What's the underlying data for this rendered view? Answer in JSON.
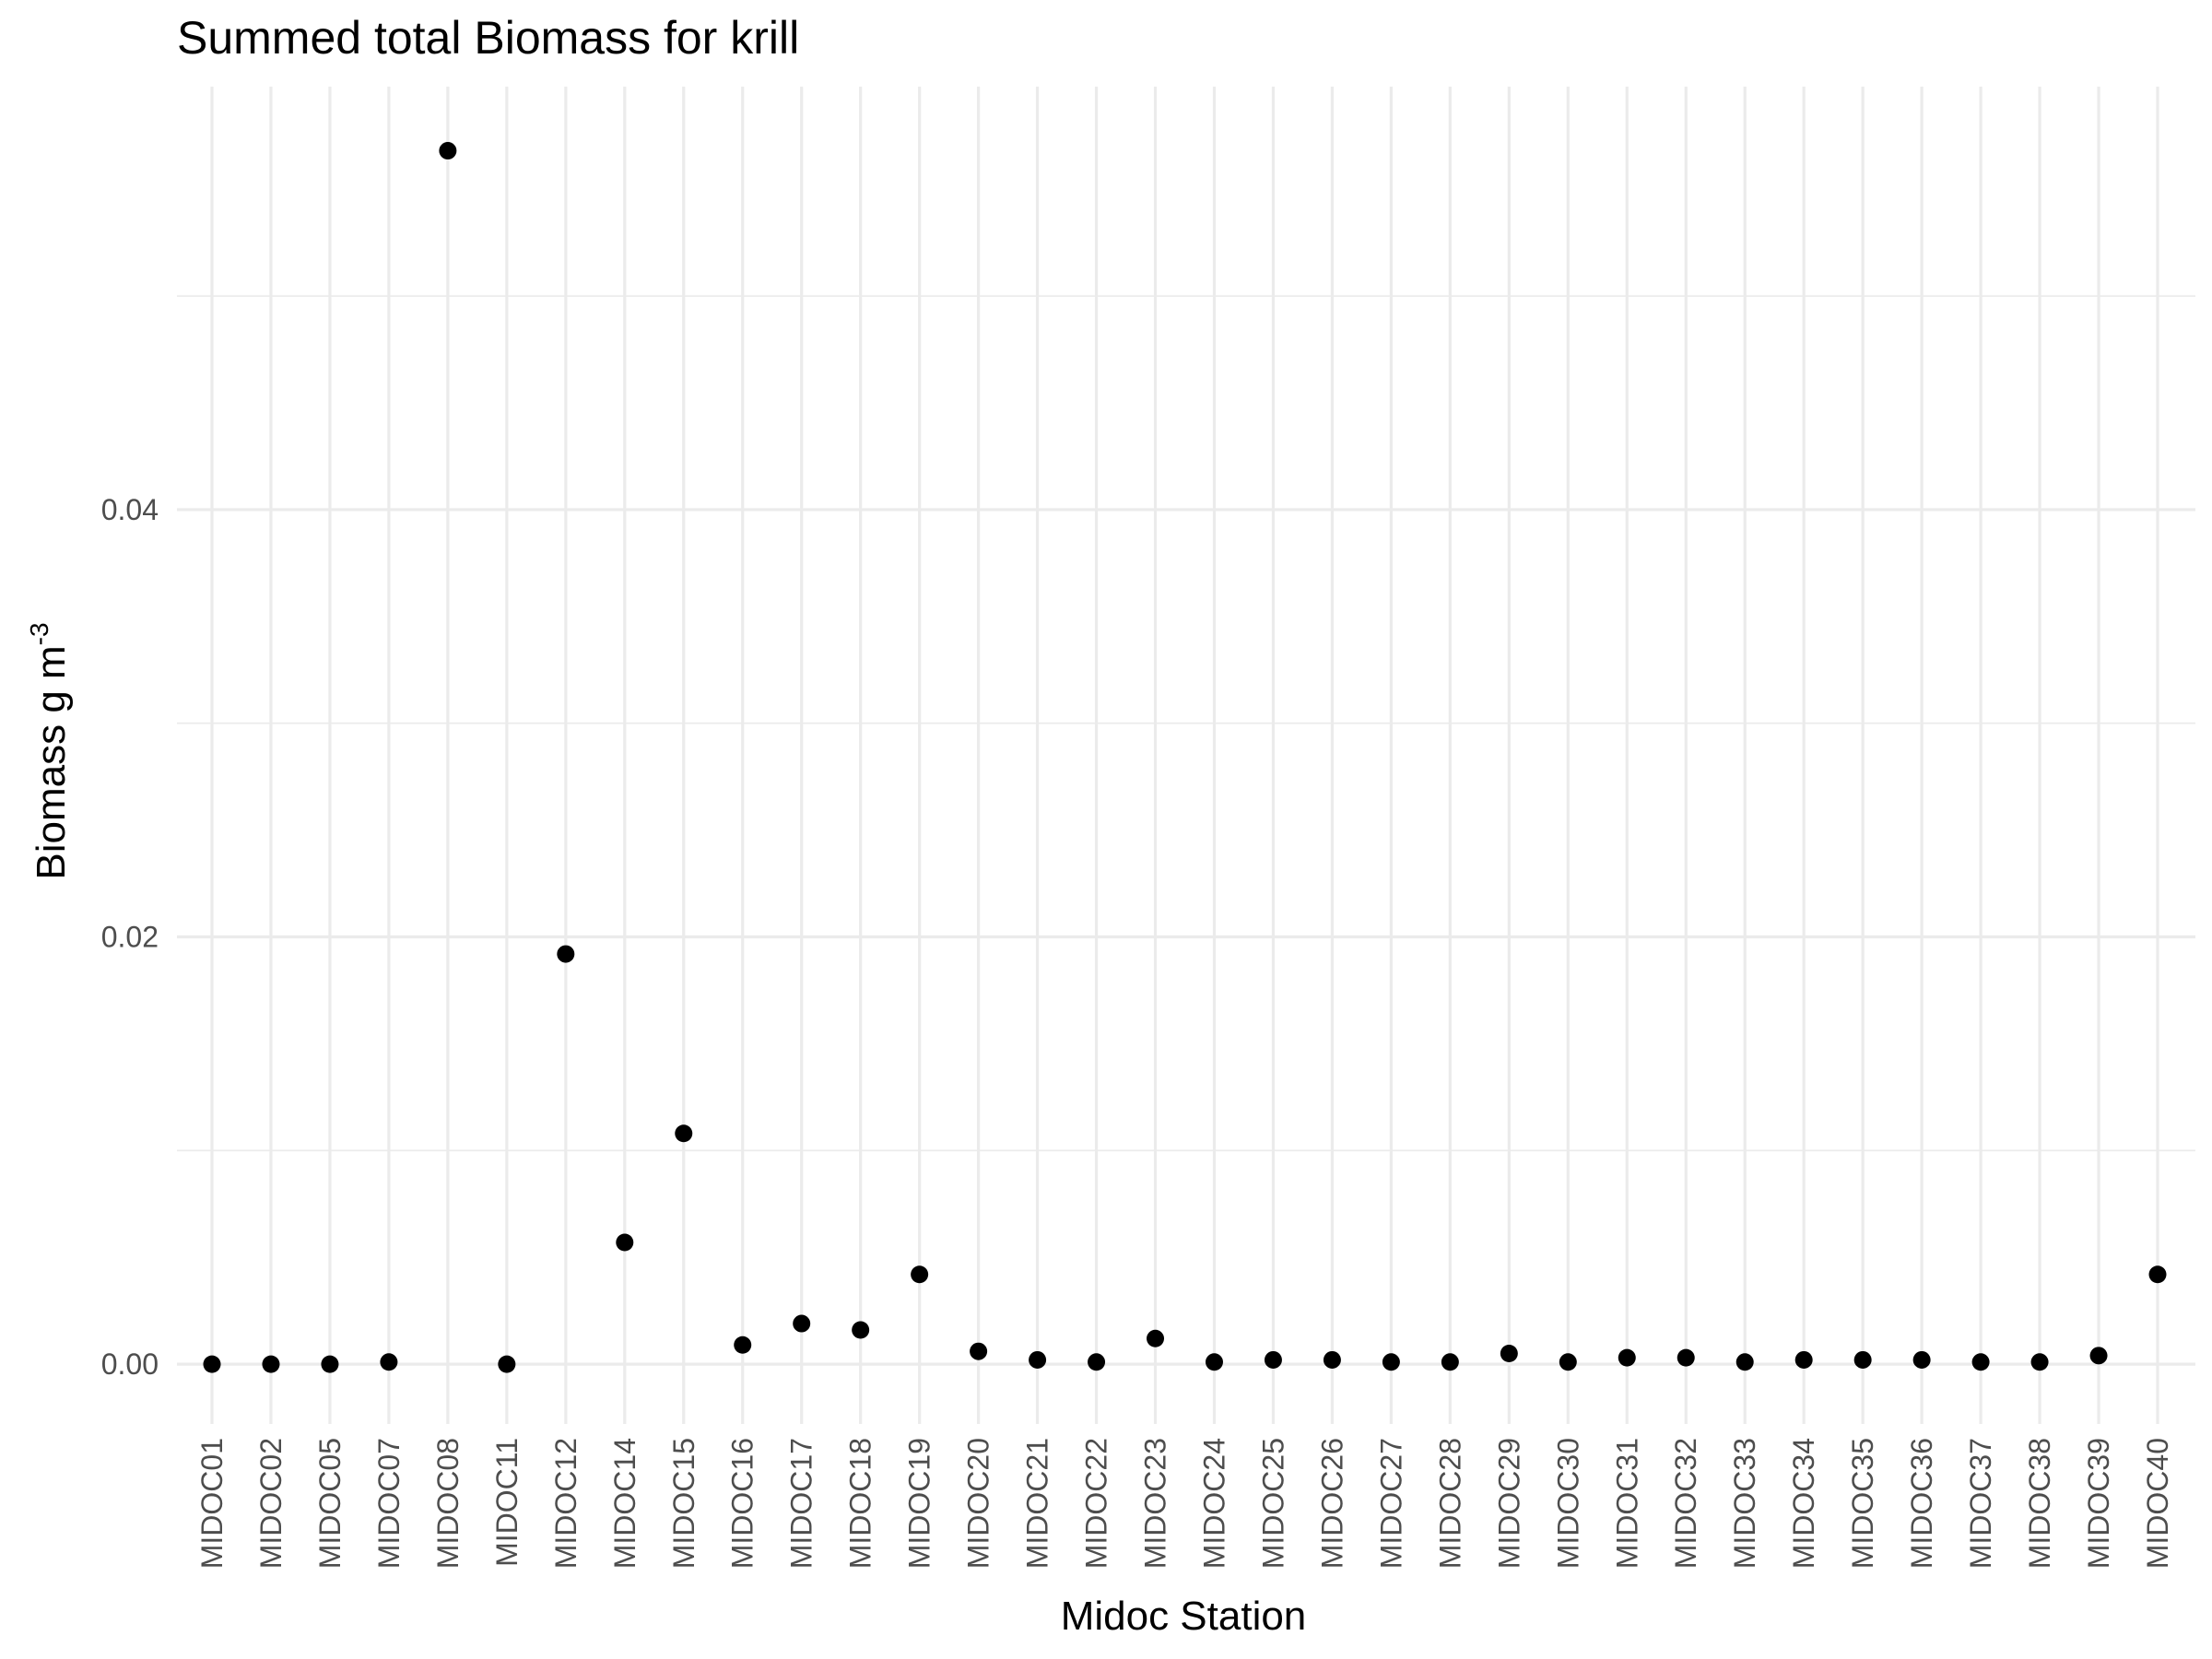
{
  "chart_data": {
    "type": "scatter",
    "title": "Summed total Biomass for krill",
    "xlabel": "Midoc Station",
    "ylabel": "Biomass g m",
    "ylabel_superscript": "-3",
    "categories": [
      "MIDOC01",
      "MIDOC02",
      "MIDOC05",
      "MIDOC07",
      "MIDOC08",
      "MIDOC11",
      "MIDOC12",
      "MIDOC14",
      "MIDOC15",
      "MIDOC16",
      "MIDOC17",
      "MIDOC18",
      "MIDOC19",
      "MIDOC20",
      "MIDOC21",
      "MIDOC22",
      "MIDOC23",
      "MIDOC24",
      "MIDOC25",
      "MIDOC26",
      "MIDOC27",
      "MIDOC28",
      "MIDOC29",
      "MIDOC30",
      "MIDOC31",
      "MIDOC32",
      "MIDOC33",
      "MIDOC34",
      "MIDOC35",
      "MIDOC36",
      "MIDOC37",
      "MIDOC38",
      "MIDOC39",
      "MIDOC40"
    ],
    "values": [
      0.0,
      0.0,
      0.0,
      0.0001,
      0.0568,
      0.0,
      0.0192,
      0.0057,
      0.0108,
      0.0009,
      0.0019,
      0.0016,
      0.0042,
      0.0006,
      0.0002,
      0.0001,
      0.0012,
      0.0001,
      0.0002,
      0.0002,
      0.0001,
      0.0001,
      0.0005,
      0.0001,
      0.0003,
      0.0003,
      0.0001,
      0.0002,
      0.0002,
      0.0002,
      0.0001,
      0.0001,
      0.0004,
      0.0042
    ],
    "ylim": [
      -0.0028,
      0.0598
    ],
    "y_major_ticks": [
      0.0,
      0.02,
      0.04
    ],
    "y_tick_labels": [
      "0.00",
      "0.02",
      "0.04"
    ],
    "y_minor_ticks": [
      0.01,
      0.03,
      0.05
    ],
    "grid": true,
    "theme": "minimal",
    "point_color": "#000000",
    "grid_color": "#ebebeb",
    "tick_label_color": "#4d4d4d"
  }
}
